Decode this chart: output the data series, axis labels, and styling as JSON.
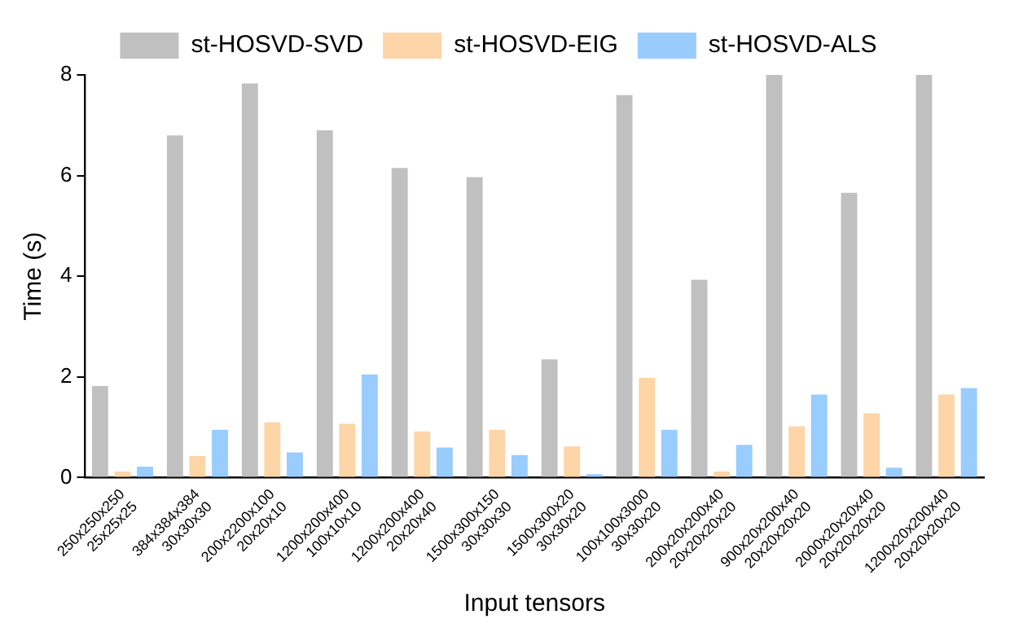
{
  "chart_data": {
    "type": "bar",
    "xlabel": "Input tensors",
    "ylabel": "Time (s)",
    "categories": [
      "250x250x250\n25x25x25",
      "384x384x384\n30x30x30",
      "200x2200x100\n20x20x10",
      "1200x200x400\n100x10x10",
      "1200x200x400\n20x20x40",
      "1500x300x150\n30x30x30",
      "1500x300x20\n30x30x20",
      "100x100x3000\n30x30x20",
      "200x20x200x40\n20x20x20x20",
      "900x20x200x40\n20x20x20x20",
      "2000x20x20x40\n20x20x20x20",
      "1200x20x200x40\n20x20x20x20"
    ],
    "series": [
      {
        "name": "st-HOSVD-SVD",
        "color": "#c0c0c0",
        "values": [
          1.82,
          6.8,
          7.83,
          6.9,
          6.15,
          5.97,
          2.35,
          7.6,
          3.93,
          8,
          5.66,
          8
        ]
      },
      {
        "name": "st-HOSVD-EIG",
        "color": "#fdd5a7",
        "values": [
          0.12,
          0.43,
          1.1,
          1.07,
          0.92,
          0.95,
          0.62,
          1.98,
          0.12,
          1.02,
          1.28,
          1.65
        ]
      },
      {
        "name": "st-HOSVD-ALS",
        "color": "#99ccff",
        "values": [
          0.22,
          0.95,
          0.5,
          2.05,
          0.6,
          0.45,
          0.07,
          0.95,
          0.65,
          1.65,
          0.2,
          1.78
        ]
      }
    ],
    "ylim": [
      0,
      8
    ],
    "yticks": [
      0,
      2,
      4,
      6,
      8
    ],
    "grid": false,
    "legend": "top"
  }
}
